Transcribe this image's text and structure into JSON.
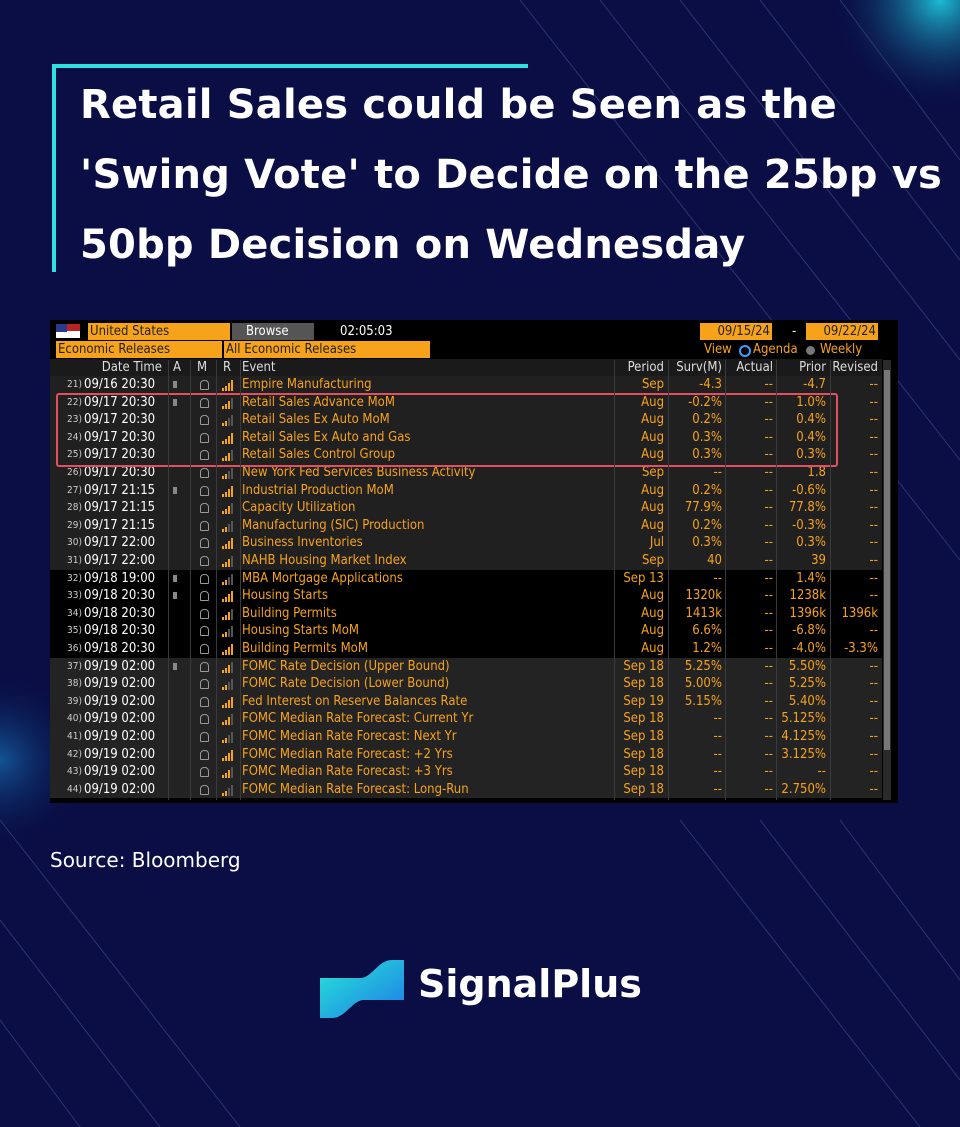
{
  "header": {
    "title_lines": [
      "Retail Sales could be Seen as the",
      "'Swing Vote' to Decide on the 25bp vs",
      "50bp Decision on Wednesday"
    ]
  },
  "terminal": {
    "country": "United States",
    "browse": "Browse",
    "clock": "02:05:03",
    "date_from": "09/15/24",
    "date_sep": "-",
    "date_to": "09/22/24",
    "filter1": "Economic Releases",
    "filter2": "All Economic Releases",
    "view": "View",
    "agenda": "Agenda",
    "weekly": "Weekly",
    "columns": [
      "Date Time",
      "A",
      "M",
      "R",
      "Event",
      "Period",
      "Surv(M)",
      "Actual",
      "Prior",
      "Revised"
    ]
  },
  "table": {
    "rows": [
      [
        "21)",
        "09/16 20:30",
        "Empire Manufacturing",
        "Sep",
        "-4.3",
        "--",
        "-4.7",
        "--"
      ],
      [
        "22)",
        "09/17 20:30",
        "Retail Sales Advance MoM",
        "Aug",
        "-0.2%",
        "--",
        "1.0%",
        "--"
      ],
      [
        "23)",
        "09/17 20:30",
        "Retail Sales Ex Auto MoM",
        "Aug",
        "0.2%",
        "--",
        "0.4%",
        "--"
      ],
      [
        "24)",
        "09/17 20:30",
        "Retail Sales Ex Auto and Gas",
        "Aug",
        "0.3%",
        "--",
        "0.4%",
        "--"
      ],
      [
        "25)",
        "09/17 20:30",
        "Retail Sales Control Group",
        "Aug",
        "0.3%",
        "--",
        "0.3%",
        "--"
      ],
      [
        "26)",
        "09/17 20:30",
        "New York Fed Services Business Activity",
        "Sep",
        "--",
        "--",
        "1.8",
        "--"
      ],
      [
        "27)",
        "09/17 21:15",
        "Industrial Production MoM",
        "Aug",
        "0.2%",
        "--",
        "-0.6%",
        "--"
      ],
      [
        "28)",
        "09/17 21:15",
        "Capacity Utilization",
        "Aug",
        "77.9%",
        "--",
        "77.8%",
        "--"
      ],
      [
        "29)",
        "09/17 21:15",
        "Manufacturing (SIC) Production",
        "Aug",
        "0.2%",
        "--",
        "-0.3%",
        "--"
      ],
      [
        "30)",
        "09/17 22:00",
        "Business Inventories",
        "Jul",
        "0.3%",
        "--",
        "0.3%",
        "--"
      ],
      [
        "31)",
        "09/17 22:00",
        "NAHB Housing Market Index",
        "Sep",
        "40",
        "--",
        "39",
        "--"
      ],
      [
        "32)",
        "09/18 19:00",
        "MBA Mortgage Applications",
        "Sep 13",
        "--",
        "--",
        "1.4%",
        "--"
      ],
      [
        "33)",
        "09/18 20:30",
        "Housing Starts",
        "Aug",
        "1320k",
        "--",
        "1238k",
        "--"
      ],
      [
        "34)",
        "09/18 20:30",
        "Building Permits",
        "Aug",
        "1413k",
        "--",
        "1396k",
        "1396k"
      ],
      [
        "35)",
        "09/18 20:30",
        "Housing Starts MoM",
        "Aug",
        "6.6%",
        "--",
        "-6.8%",
        "--"
      ],
      [
        "36)",
        "09/18 20:30",
        "Building Permits MoM",
        "Aug",
        "1.2%",
        "--",
        "-4.0%",
        "-3.3%"
      ],
      [
        "37)",
        "09/19 02:00",
        "FOMC Rate Decision (Upper Bound)",
        "Sep 18",
        "5.25%",
        "--",
        "5.50%",
        "--"
      ],
      [
        "38)",
        "09/19 02:00",
        "FOMC Rate Decision (Lower Bound)",
        "Sep 18",
        "5.00%",
        "--",
        "5.25%",
        "--"
      ],
      [
        "39)",
        "09/19 02:00",
        "Fed Interest on Reserve Balances Rate",
        "Sep 19",
        "5.15%",
        "--",
        "5.40%",
        "--"
      ],
      [
        "40)",
        "09/19 02:00",
        "FOMC Median Rate Forecast: Current Yr",
        "Sep 18",
        "--",
        "--",
        "5.125%",
        "--"
      ],
      [
        "41)",
        "09/19 02:00",
        "FOMC Median Rate Forecast: Next Yr",
        "Sep 18",
        "--",
        "--",
        "4.125%",
        "--"
      ],
      [
        "42)",
        "09/19 02:00",
        "FOMC Median Rate Forecast: +2 Yrs",
        "Sep 18",
        "--",
        "--",
        "3.125%",
        "--"
      ],
      [
        "43)",
        "09/19 02:00",
        "FOMC Median Rate Forecast: +3 Yrs",
        "Sep 18",
        "--",
        "--",
        "--",
        "--"
      ],
      [
        "44)",
        "09/19 02:00",
        "FOMC Median Rate Forecast: Long-Run",
        "Sep 18",
        "--",
        "--",
        "2.750%",
        "--"
      ]
    ]
  },
  "footer": {
    "source": "Source: Bloomberg",
    "brand": "SignalPlus"
  }
}
